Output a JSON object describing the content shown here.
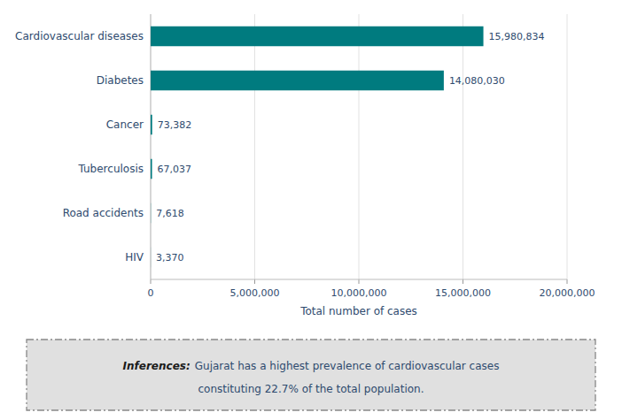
{
  "chart_data": {
    "type": "bar",
    "orientation": "horizontal",
    "categories": [
      "HIV",
      "Road accidents",
      "Tuberculosis",
      "Cancer",
      "Diabetes",
      "Cardiovascular diseases"
    ],
    "values": [
      3370,
      7618,
      67037,
      73382,
      14080030,
      15980834
    ],
    "value_labels": [
      "3,370",
      "7,618",
      "67,037",
      "73,382",
      "14,080,030",
      "15,980,834"
    ],
    "data_labels": true,
    "color": "#007b7f",
    "xlabel": "Total number of cases",
    "xlim": [
      0,
      20000000
    ],
    "xticks": [
      0,
      {
        "value": 5000000,
        "label": "5,000,000"
      },
      {
        "value": 10000000,
        "label": "10,000,000"
      },
      {
        "value": 15000000,
        "label": "15,000,000"
      },
      {
        "value": 20000000,
        "label": "20,000,000"
      }
    ],
    "grid": true,
    "annotations": [
      "Inferences:",
      "Gujarat has a highest prevalence of cardiovascular cases",
      "constituting 22.7% of the total population."
    ]
  }
}
